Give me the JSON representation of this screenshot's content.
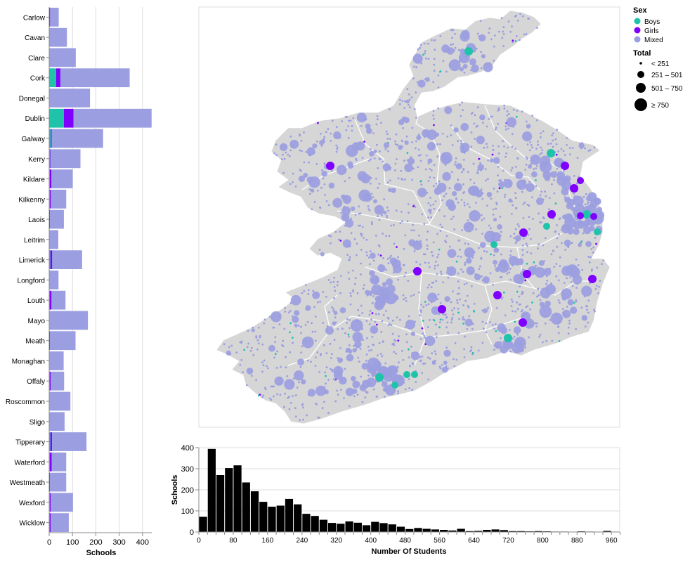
{
  "colors": {
    "boys": "#1fc3aa",
    "girls": "#8000ff",
    "mixed": "#9b9ee0",
    "land": "#d6d6d6",
    "bar": "#000000",
    "grid": "#dddddd"
  },
  "chart_data": [
    {
      "type": "bar",
      "orientation": "horizontal",
      "stacked": true,
      "title": "",
      "xlabel": "Schools",
      "xlim": [
        0,
        440
      ],
      "xticks": [
        "0",
        "100",
        "200",
        "300",
        "400"
      ],
      "categories": [
        "Carlow",
        "Cavan",
        "Clare",
        "Cork",
        "Donegal",
        "Dublin",
        "Galway",
        "Kerry",
        "Kildare",
        "Kilkenny",
        "Laois",
        "Leitrim",
        "Limerick",
        "Longford",
        "Louth",
        "Mayo",
        "Meath",
        "Monaghan",
        "Offaly",
        "Roscommon",
        "Sligo",
        "Tipperary",
        "Waterford",
        "Westmeath",
        "Wexford",
        "Wicklow"
      ],
      "series": [
        {
          "name": "Boys",
          "values": [
            1,
            0,
            1,
            30,
            1,
            63,
            7,
            4,
            3,
            3,
            1,
            0,
            5,
            0,
            2,
            1,
            1,
            1,
            2,
            1,
            1,
            5,
            3,
            1,
            3,
            2
          ]
        },
        {
          "name": "Girls",
          "values": [
            3,
            0,
            1,
            18,
            1,
            41,
            4,
            2,
            6,
            4,
            2,
            0,
            8,
            0,
            8,
            1,
            2,
            1,
            4,
            1,
            1,
            7,
            8,
            2,
            3,
            4
          ]
        },
        {
          "name": "Mixed",
          "values": [
            37,
            76,
            112,
            297,
            173,
            335,
            220,
            128,
            92,
            66,
            60,
            39,
            128,
            40,
            60,
            164,
            110,
            60,
            58,
            89,
            64,
            148,
            62,
            70,
            96,
            78
          ]
        }
      ]
    },
    {
      "type": "bar",
      "title": "",
      "xlabel": "Number Of Students",
      "ylabel": "Schools",
      "xlim": [
        0,
        980
      ],
      "ylim": [
        0,
        400
      ],
      "bin_width": 20,
      "xticks": [
        "0",
        "80",
        "160",
        "240",
        "320",
        "400",
        "480",
        "560",
        "640",
        "720",
        "800",
        "880",
        "960"
      ],
      "yticks": [
        "0",
        "100",
        "200",
        "300",
        "400"
      ],
      "values": [
        72,
        394,
        270,
        303,
        316,
        235,
        193,
        143,
        120,
        125,
        157,
        131,
        86,
        76,
        58,
        43,
        39,
        50,
        44,
        32,
        48,
        42,
        36,
        25,
        14,
        19,
        15,
        12,
        10,
        7,
        15,
        4,
        5,
        10,
        12,
        9,
        4,
        4,
        3,
        4,
        3,
        2,
        2,
        1,
        3,
        2,
        1,
        5
      ]
    },
    {
      "type": "scatter",
      "title": "",
      "encoding": {
        "color": "Sex",
        "size": "Total"
      },
      "legend": {
        "position": "top-right",
        "color_title": "Sex",
        "color_items": [
          "Boys",
          "Girls",
          "Mixed"
        ],
        "size_title": "Total",
        "size_items": [
          "< 251",
          "251 – 501",
          "501 – 750",
          "≥ 750"
        ]
      }
    }
  ]
}
